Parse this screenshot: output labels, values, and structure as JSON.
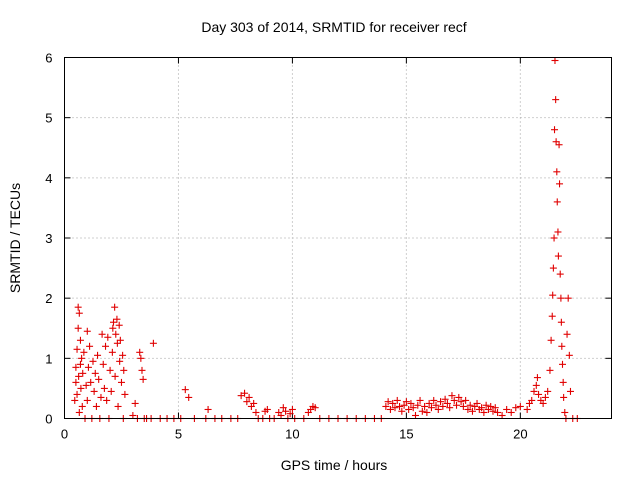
{
  "chart_data": {
    "type": "scatter",
    "title": "Day 303 of 2014, SRMTID for receiver recf",
    "xlabel": "GPS time / hours",
    "ylabel": "SRMTID / TECUs",
    "xlim": [
      0,
      24
    ],
    "ylim": [
      0,
      6
    ],
    "xticks": [
      0,
      5,
      10,
      15,
      20
    ],
    "yticks": [
      0,
      1,
      2,
      3,
      4,
      5,
      6
    ],
    "xtick_labels": [
      "0",
      "5",
      "10",
      "15",
      "20"
    ],
    "ytick_labels": [
      "0",
      "1",
      "2",
      "3",
      "4",
      "5",
      "6"
    ],
    "grid": true,
    "marker": "+",
    "color": "#e00000",
    "series": [
      {
        "name": "SRMTID",
        "points": [
          [
            0.45,
            0.3
          ],
          [
            0.5,
            0.6
          ],
          [
            0.5,
            0.85
          ],
          [
            0.55,
            1.15
          ],
          [
            0.55,
            0.4
          ],
          [
            0.6,
            1.85
          ],
          [
            0.6,
            1.5
          ],
          [
            0.62,
            0.7
          ],
          [
            0.65,
            1.75
          ],
          [
            0.65,
            0.1
          ],
          [
            0.7,
            1.3
          ],
          [
            0.7,
            0.9
          ],
          [
            0.72,
            0.5
          ],
          [
            0.75,
            1.0
          ],
          [
            0.78,
            0.2
          ],
          [
            0.8,
            0.75
          ],
          [
            0.85,
            1.1
          ],
          [
            0.9,
            0.0
          ],
          [
            0.95,
            0.55
          ],
          [
            1.0,
            1.45
          ],
          [
            1.0,
            0.3
          ],
          [
            1.05,
            0.85
          ],
          [
            1.1,
            1.2
          ],
          [
            1.15,
            0.6
          ],
          [
            1.2,
            0.0
          ],
          [
            1.25,
            0.95
          ],
          [
            1.3,
            0.45
          ],
          [
            1.35,
            0.75
          ],
          [
            1.4,
            0.2
          ],
          [
            1.45,
            1.05
          ],
          [
            1.5,
            0.65
          ],
          [
            1.55,
            0.0
          ],
          [
            1.6,
            0.35
          ],
          [
            1.65,
            1.4
          ],
          [
            1.7,
            0.9
          ],
          [
            1.75,
            0.5
          ],
          [
            1.8,
            1.2
          ],
          [
            1.85,
            0.3
          ],
          [
            1.9,
            1.35
          ],
          [
            1.95,
            0.0
          ],
          [
            2.0,
            0.8
          ],
          [
            2.05,
            0.45
          ],
          [
            2.1,
            1.1
          ],
          [
            2.12,
            1.5
          ],
          [
            2.15,
            1.6
          ],
          [
            2.2,
            1.85
          ],
          [
            2.22,
            0.7
          ],
          [
            2.25,
            1.4
          ],
          [
            2.3,
            1.65
          ],
          [
            2.32,
            1.25
          ],
          [
            2.35,
            0.2
          ],
          [
            2.4,
            1.55
          ],
          [
            2.42,
            0.95
          ],
          [
            2.45,
            1.3
          ],
          [
            2.5,
            0.6
          ],
          [
            2.55,
            1.05
          ],
          [
            2.58,
            0.0
          ],
          [
            2.6,
            0.8
          ],
          [
            2.65,
            0.4
          ],
          [
            3.0,
            0.05
          ],
          [
            3.1,
            0.25
          ],
          [
            3.2,
            0.0
          ],
          [
            3.3,
            1.1
          ],
          [
            3.35,
            1.0
          ],
          [
            3.4,
            0.8
          ],
          [
            3.45,
            0.65
          ],
          [
            3.5,
            0.0
          ],
          [
            3.6,
            0.0
          ],
          [
            3.8,
            0.0
          ],
          [
            3.9,
            1.25
          ],
          [
            4.2,
            0.0
          ],
          [
            4.5,
            0.0
          ],
          [
            4.8,
            0.0
          ],
          [
            5.1,
            0.0
          ],
          [
            5.3,
            0.48
          ],
          [
            5.45,
            0.35
          ],
          [
            5.7,
            0.0
          ],
          [
            6.2,
            0.0
          ],
          [
            6.3,
            0.15
          ],
          [
            6.6,
            0.0
          ],
          [
            6.9,
            0.0
          ],
          [
            7.3,
            0.0
          ],
          [
            7.6,
            0.0
          ],
          [
            7.75,
            0.38
          ],
          [
            7.9,
            0.42
          ],
          [
            8.0,
            0.28
          ],
          [
            8.1,
            0.35
          ],
          [
            8.2,
            0.2
          ],
          [
            8.3,
            0.25
          ],
          [
            8.4,
            0.1
          ],
          [
            8.5,
            0.0
          ],
          [
            8.7,
            0.0
          ],
          [
            8.8,
            0.12
          ],
          [
            8.9,
            0.15
          ],
          [
            9.0,
            0.0
          ],
          [
            9.2,
            0.0
          ],
          [
            9.4,
            0.1
          ],
          [
            9.5,
            0.05
          ],
          [
            9.6,
            0.18
          ],
          [
            9.7,
            0.12
          ],
          [
            9.8,
            0.0
          ],
          [
            9.9,
            0.08
          ],
          [
            10.0,
            0.15
          ],
          [
            10.1,
            0.0
          ],
          [
            10.5,
            0.0
          ],
          [
            10.7,
            0.1
          ],
          [
            10.8,
            0.15
          ],
          [
            10.9,
            0.2
          ],
          [
            11.0,
            0.18
          ],
          [
            11.2,
            0.0
          ],
          [
            11.6,
            0.0
          ],
          [
            12.0,
            0.0
          ],
          [
            12.4,
            0.0
          ],
          [
            12.8,
            0.0
          ],
          [
            13.2,
            0.0
          ],
          [
            13.6,
            0.0
          ],
          [
            13.9,
            0.0
          ],
          [
            14.1,
            0.2
          ],
          [
            14.2,
            0.28
          ],
          [
            14.3,
            0.15
          ],
          [
            14.4,
            0.25
          ],
          [
            14.5,
            0.18
          ],
          [
            14.6,
            0.3
          ],
          [
            14.7,
            0.2
          ],
          [
            14.8,
            0.12
          ],
          [
            14.9,
            0.22
          ],
          [
            15.0,
            0.28
          ],
          [
            15.1,
            0.15
          ],
          [
            15.2,
            0.25
          ],
          [
            15.3,
            0.18
          ],
          [
            15.4,
            0.05
          ],
          [
            15.5,
            0.22
          ],
          [
            15.6,
            0.3
          ],
          [
            15.7,
            0.12
          ],
          [
            15.8,
            0.2
          ],
          [
            15.9,
            0.1
          ],
          [
            16.0,
            0.25
          ],
          [
            16.1,
            0.18
          ],
          [
            16.2,
            0.3
          ],
          [
            16.3,
            0.22
          ],
          [
            16.4,
            0.15
          ],
          [
            16.5,
            0.28
          ],
          [
            16.6,
            0.2
          ],
          [
            16.7,
            0.32
          ],
          [
            16.8,
            0.25
          ],
          [
            16.9,
            0.18
          ],
          [
            17.0,
            0.38
          ],
          [
            17.1,
            0.3
          ],
          [
            17.2,
            0.22
          ],
          [
            17.3,
            0.35
          ],
          [
            17.4,
            0.28
          ],
          [
            17.5,
            0.2
          ],
          [
            17.6,
            0.3
          ],
          [
            17.7,
            0.15
          ],
          [
            17.8,
            0.22
          ],
          [
            17.9,
            0.12
          ],
          [
            18.0,
            0.2
          ],
          [
            18.1,
            0.25
          ],
          [
            18.2,
            0.15
          ],
          [
            18.3,
            0.18
          ],
          [
            18.4,
            0.1
          ],
          [
            18.5,
            0.22
          ],
          [
            18.6,
            0.15
          ],
          [
            18.7,
            0.2
          ],
          [
            18.8,
            0.12
          ],
          [
            18.9,
            0.18
          ],
          [
            19.0,
            0.1
          ],
          [
            19.2,
            0.05
          ],
          [
            19.4,
            0.15
          ],
          [
            19.6,
            0.1
          ],
          [
            19.8,
            0.18
          ],
          [
            20.0,
            0.2
          ],
          [
            20.3,
            0.15
          ],
          [
            20.4,
            0.25
          ],
          [
            20.5,
            0.3
          ],
          [
            20.6,
            0.45
          ],
          [
            20.7,
            0.55
          ],
          [
            20.75,
            0.68
          ],
          [
            20.8,
            0.4
          ],
          [
            20.9,
            0.3
          ],
          [
            21.0,
            0.25
          ],
          [
            21.1,
            0.35
          ],
          [
            21.2,
            0.45
          ],
          [
            21.3,
            0.8
          ],
          [
            21.35,
            1.3
          ],
          [
            21.4,
            1.7
          ],
          [
            21.42,
            2.05
          ],
          [
            21.45,
            2.5
          ],
          [
            21.48,
            3.0
          ],
          [
            21.5,
            4.8
          ],
          [
            21.52,
            5.95
          ],
          [
            21.55,
            5.3
          ],
          [
            21.57,
            4.6
          ],
          [
            21.6,
            4.1
          ],
          [
            21.62,
            3.6
          ],
          [
            21.65,
            3.1
          ],
          [
            21.67,
            2.7
          ],
          [
            21.7,
            4.55
          ],
          [
            21.72,
            3.9
          ],
          [
            21.75,
            2.4
          ],
          [
            21.78,
            2.0
          ],
          [
            21.8,
            1.6
          ],
          [
            21.82,
            1.2
          ],
          [
            21.85,
            0.9
          ],
          [
            21.88,
            0.6
          ],
          [
            21.9,
            0.35
          ],
          [
            21.95,
            0.1
          ],
          [
            22.0,
            0.0
          ],
          [
            22.05,
            1.4
          ],
          [
            22.1,
            2.0
          ],
          [
            22.15,
            1.05
          ],
          [
            22.2,
            0.45
          ],
          [
            22.3,
            0.0
          ],
          [
            22.5,
            0.0
          ]
        ]
      }
    ]
  }
}
